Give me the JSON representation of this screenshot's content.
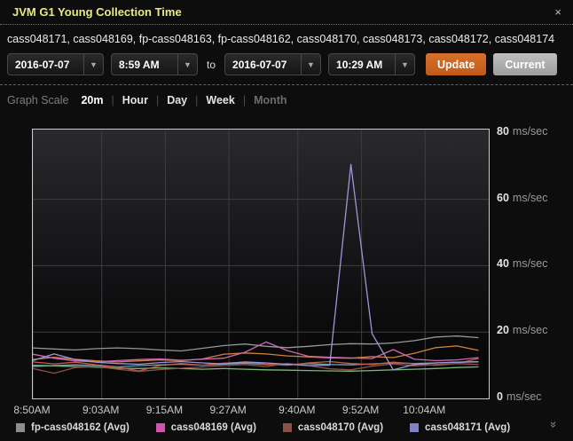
{
  "window": {
    "title": "JVM G1 Young Collection Time",
    "close_label": "×"
  },
  "hosts_line": "cass048171, cass048169, fp-cass048163, fp-cass048162, cass048170, cass048173, cass048172, cass048174",
  "time_controls": {
    "start_date": "2016-07-07",
    "start_time": "8:59 AM",
    "to_label": "to",
    "end_date": "2016-07-07",
    "end_time": "10:29 AM",
    "update_label": "Update",
    "current_label": "Current",
    "dropdown_arrow": "▼"
  },
  "graph_scale": {
    "label": "Graph Scale",
    "options": [
      {
        "label": "20m",
        "state": "selected"
      },
      {
        "label": "Hour",
        "state": "normal"
      },
      {
        "label": "Day",
        "state": "normal"
      },
      {
        "label": "Week",
        "state": "normal"
      },
      {
        "label": "Month",
        "state": "muted"
      }
    ]
  },
  "chart_data": {
    "type": "line",
    "title": "JVM G1 Young Collection Time",
    "ylabel": "ms/sec",
    "ylim": [
      0,
      81
    ],
    "xlim_minutes": [
      0,
      86
    ],
    "grid": true,
    "legend_position": "bottom",
    "grid_y_values": [
      20,
      40,
      60
    ],
    "y_ticks": [
      {
        "value": 80,
        "label": "80",
        "unit": "ms/sec"
      },
      {
        "value": 60,
        "label": "60",
        "unit": "ms/sec"
      },
      {
        "value": 40,
        "label": "40",
        "unit": "ms/sec"
      },
      {
        "value": 20,
        "label": "20",
        "unit": "ms/sec"
      },
      {
        "value": 0,
        "label": "0",
        "unit": "ms/sec"
      }
    ],
    "x_ticks": [
      {
        "minute": 0,
        "label": "8:50AM"
      },
      {
        "minute": 13,
        "label": "9:03AM"
      },
      {
        "minute": 25,
        "label": "9:15AM"
      },
      {
        "minute": 37,
        "label": "9:27AM"
      },
      {
        "minute": 50,
        "label": "9:40AM"
      },
      {
        "minute": 62,
        "label": "9:52AM"
      },
      {
        "minute": 74,
        "label": "10:04AM"
      }
    ],
    "x_minutes": [
      0,
      4,
      8,
      12,
      16,
      20,
      24,
      28,
      32,
      36,
      40,
      44,
      48,
      52,
      56,
      60,
      64,
      68,
      72,
      76,
      80,
      84
    ],
    "series": [
      {
        "name": "fp-cass048163 (Avg)",
        "color": "#6aa4b5",
        "values": [
          9.6,
          9.9,
          10.1,
          9.8,
          9.5,
          9.9,
          10.1,
          10.3,
          10.0,
          10.3,
          10.6,
          10.2,
          10.1,
          10.5,
          10.2,
          10.1,
          10.4,
          10.7,
          10.5,
          10.7,
          10.9,
          11.1
        ]
      },
      {
        "name": "cass048174 (Avg)",
        "color": "#79b774",
        "values": [
          10.0,
          9.8,
          9.6,
          9.4,
          9.1,
          9.0,
          9.2,
          9.0,
          8.8,
          9.0,
          8.8,
          8.6,
          8.5,
          8.4,
          8.3,
          8.2,
          8.4,
          8.6,
          8.8,
          9.0,
          9.3,
          9.5
        ]
      },
      {
        "name": "cass048173 (Avg)",
        "color": "#c65a50",
        "values": [
          11.0,
          10.4,
          10.9,
          10.1,
          9.5,
          8.3,
          9.9,
          10.5,
          10.0,
          10.6,
          10.9,
          10.3,
          10.0,
          10.7,
          11.1,
          10.5,
          10.2,
          10.9,
          10.4,
          10.0,
          10.5,
          12.0
        ]
      },
      {
        "name": "cass048170 (Avg)",
        "color": "#8a5148",
        "values": [
          9.0,
          7.6,
          9.3,
          9.6,
          8.8,
          8.1,
          8.7,
          9.1,
          9.5,
          9.9,
          10.2,
          9.6,
          10.5,
          9.9,
          8.9,
          8.6,
          9.7,
          10.4,
          9.8,
          10.2,
          10.5,
          10.2
        ]
      },
      {
        "name": "cass048172 (Avg)",
        "color": "#d1813d",
        "values": [
          11.7,
          12.4,
          11.8,
          11.3,
          11.0,
          11.3,
          11.6,
          11.4,
          11.9,
          13.3,
          13.7,
          13.4,
          12.8,
          12.5,
          12.2,
          12.1,
          12.6,
          12.3,
          13.6,
          15.3,
          15.8,
          14.5
        ]
      },
      {
        "name": "cass048169 (Avg)",
        "color": "#d066b4",
        "values": [
          13.3,
          12.1,
          11.3,
          11.0,
          11.4,
          11.7,
          11.9,
          11.5,
          11.8,
          12.1,
          13.9,
          17.0,
          14.4,
          12.7,
          12.4,
          12.2,
          12.0,
          14.7,
          11.8,
          11.4,
          11.6,
          12.3
        ]
      },
      {
        "name": "fp-cass048162 (Avg)",
        "color": "#969696",
        "values": [
          15.2,
          14.9,
          14.6,
          15.0,
          15.2,
          15.0,
          14.6,
          14.3,
          15.1,
          15.9,
          16.4,
          15.7,
          15.3,
          15.7,
          16.2,
          16.5,
          16.4,
          16.7,
          17.4,
          18.5,
          18.8,
          18.3
        ]
      },
      {
        "name": "cass048171 (Avg)",
        "color": "#9a98d8",
        "values": [
          11.4,
          13.4,
          11.7,
          10.9,
          10.5,
          10.3,
          10.8,
          11.1,
          10.7,
          10.4,
          11.0,
          10.7,
          10.3,
          9.9,
          10.0,
          70.5,
          19.5,
          8.6,
          10.2,
          10.7,
          10.9,
          11.0
        ]
      }
    ]
  },
  "legend": {
    "items": [
      {
        "label": "fp-cass048162 (Avg)",
        "color": "#8e8e8e"
      },
      {
        "label": "cass048169 (Avg)",
        "color": "#d054ae"
      },
      {
        "label": "cass048170 (Avg)",
        "color": "#8a5148"
      },
      {
        "label": "cass048171 (Avg)",
        "color": "#8280c8"
      }
    ],
    "expand_icon": "»"
  }
}
